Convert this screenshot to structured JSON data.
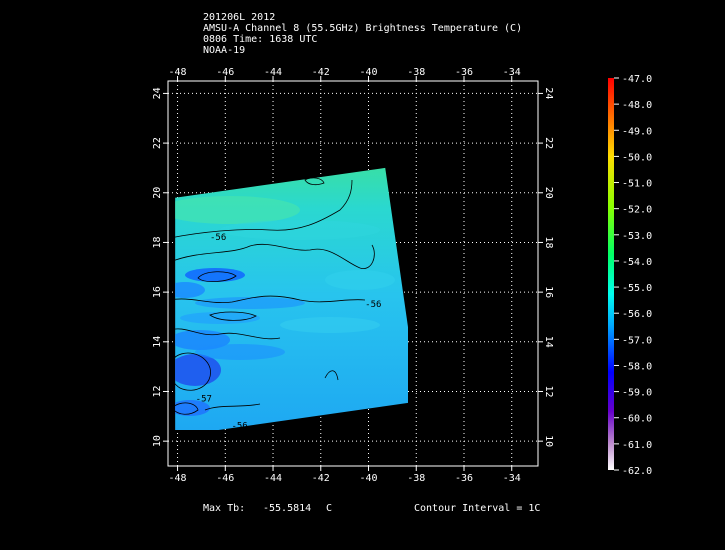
{
  "header": {
    "line1": "201206L 2012",
    "line2": "AMSU-A Channel 8 (55.5GHz) Brightness Temperature (C)",
    "line3": "0806 Time: 1638 UTC",
    "line4": "NOAA-19"
  },
  "footer": {
    "max_tb_label": "Max Tb:",
    "max_tb_value": "-55.5814",
    "max_tb_unit": "C",
    "contour_interval": "Contour Interval = 1C"
  },
  "chart_data": {
    "type": "heatmap",
    "title": "AMSU-A Channel 8 (55.5GHz) Brightness Temperature (C)",
    "x_tick_labels": [
      "-48",
      "-46",
      "-44",
      "-42",
      "-40",
      "-38",
      "-36",
      "-34"
    ],
    "x_ticks": [
      -48,
      -46,
      -44,
      -42,
      -40,
      -38,
      -36,
      -34
    ],
    "y_tick_labels": [
      "10",
      "12",
      "14",
      "16",
      "18",
      "20",
      "22",
      "24"
    ],
    "y_ticks": [
      10,
      12,
      14,
      16,
      18,
      20,
      22,
      24
    ],
    "xlim": [
      -48.4,
      -32.9
    ],
    "ylim": [
      9.0,
      24.5
    ],
    "grid": true,
    "swath_corners": [
      [
        -48.1,
        10.2
      ],
      [
        -48.1,
        19.8
      ],
      [
        -39.3,
        21.0
      ],
      [
        -37.9,
        11.6
      ]
    ],
    "contour_labels": [
      {
        "text": "-56",
        "x": -46.3,
        "y": 18.1
      },
      {
        "text": "-56",
        "x": -39.8,
        "y": 15.4
      },
      {
        "text": "-57",
        "x": -46.9,
        "y": 11.6
      },
      {
        "text": "-56",
        "x": -45.4,
        "y": 10.5
      }
    ],
    "colorbar": {
      "labels": [
        "-47.0",
        "-48.0",
        "-49.0",
        "-50.0",
        "-51.0",
        "-52.0",
        "-53.0",
        "-54.0",
        "-55.0",
        "-56.0",
        "-57.0",
        "-58.0",
        "-59.0",
        "-60.0",
        "-61.0",
        "-62.0"
      ],
      "values": [
        -47,
        -48,
        -49,
        -50,
        -51,
        -52,
        -53,
        -54,
        -55,
        -56,
        -57,
        -58,
        -59,
        -60,
        -61,
        -62
      ],
      "range": [
        -62,
        -47
      ],
      "colors": [
        "#ff0000",
        "#ff8000",
        "#ffdd00",
        "#99ff00",
        "#00ff66",
        "#00ffee",
        "#00aaff",
        "#0000ff",
        "#6600cc",
        "#ffffff"
      ]
    },
    "fill_colors": {
      "background": "#000000",
      "swath_base": "#22ccee",
      "swath_light": "#33e0dd",
      "swath_green": "#33e099",
      "swath_dark": "#1177ff",
      "swath_deep": "#2255ee"
    }
  }
}
